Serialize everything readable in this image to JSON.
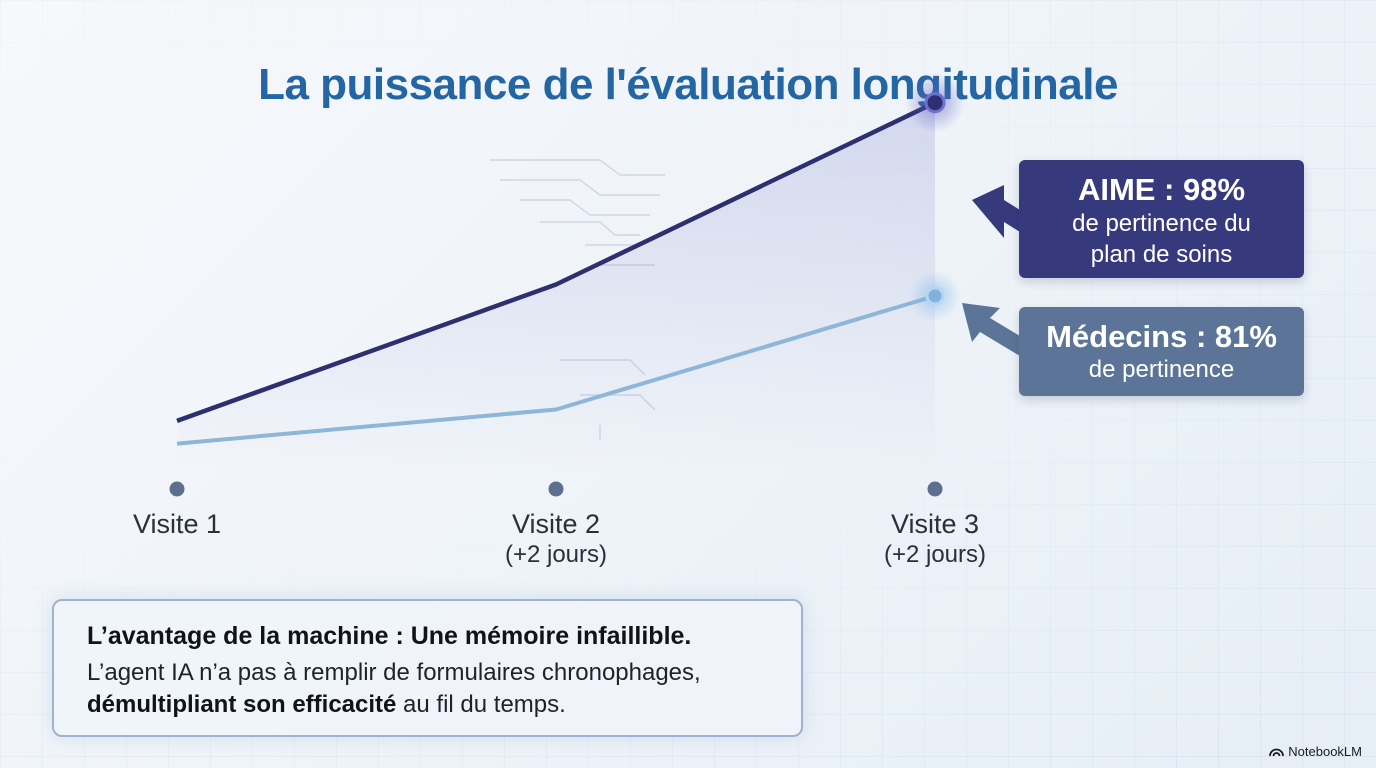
{
  "title": "La puissance de l'évaluation longitudinale",
  "chart_data": {
    "type": "line",
    "categories": [
      "Visite 1",
      "Visite 2",
      "Visite 3"
    ],
    "category_sublabels": [
      "",
      "(+2 jours)",
      "(+2 jours)"
    ],
    "series": [
      {
        "name": "AIME",
        "values": [
          70,
          82,
          98
        ],
        "color": "#2e2f6e"
      },
      {
        "name": "Médecins",
        "values": [
          68,
          71,
          81
        ],
        "color": "#8eb6d9"
      }
    ],
    "ylim": [
      56,
      100
    ],
    "legend": "right"
  },
  "callouts": {
    "aime": {
      "headline": "AIME : 98%",
      "line1": "de pertinence du",
      "line2": "plan de soins"
    },
    "medecins": {
      "headline": "Médecins : 81%",
      "line1": "de pertinence"
    }
  },
  "info": {
    "title": "L’avantage de la machine : Une mémoire infaillible.",
    "text_plain": "L’agent IA n’a pas à remplir de formulaires chronophages,",
    "text_bold": "démultipliant son efficacité",
    "text_end": " au fil du temps."
  },
  "brand": "NotebookLM"
}
